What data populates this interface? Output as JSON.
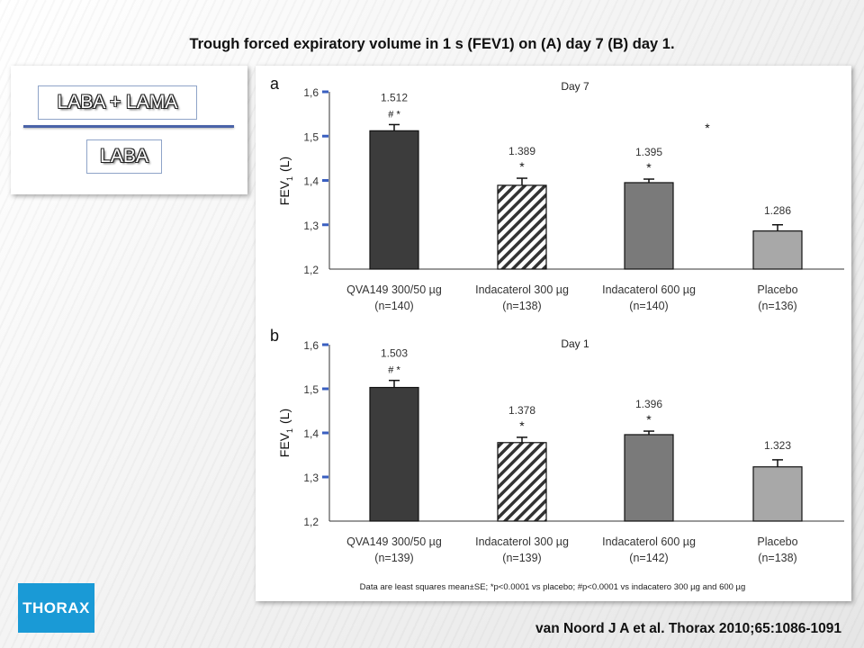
{
  "title": "Trough forced expiratory volume in 1 s (FEV1) on (A) day 7 (B) day 1.",
  "legend": {
    "items": [
      "LABA + LAMA",
      "LABA"
    ],
    "line_color": "#4a63a8"
  },
  "logo": "THORAX",
  "citation": "van Noord J A et al. Thorax 2010;65:1086-1091",
  "footnote": "Data are least squares mean±SE; *p<0.0001 vs placebo; #p<0.0001 vs indacatero 300 µg and 600 µg",
  "colors": {
    "dark": "#3c3c3c",
    "mid": "#7a7a7a",
    "light": "#a8a8a8",
    "hatch": "#333333",
    "tick": "#3a5fc0"
  },
  "chart_data": [
    {
      "panel": "a",
      "type": "bar",
      "title": "Day 7",
      "ylabel": "FEV",
      "ylabel_sub": "1",
      "ylabel_unit": "(L)",
      "ylim": [
        1.2,
        1.6
      ],
      "yticks": [
        "1,2",
        "1,3",
        "1,4",
        "1,5",
        "1,6"
      ],
      "categories": [
        [
          "QVA149 300/50 µg",
          "(n=140)"
        ],
        [
          "Indacaterol 300 µg",
          "(n=138)"
        ],
        [
          "Indacaterol 600 µg",
          "(n=140)"
        ],
        [
          "Placebo",
          "(n=136)"
        ]
      ],
      "values": [
        1.512,
        1.389,
        1.395,
        1.286
      ],
      "errors": [
        0.014,
        0.016,
        0.008,
        0.014
      ],
      "value_labels": [
        "1.512",
        "1.389",
        "1.395",
        "1.286"
      ],
      "significance": [
        "# *",
        "*",
        "*",
        ""
      ],
      "extra_marker": "*",
      "fills": [
        "dark",
        "hatch",
        "mid",
        "light"
      ]
    },
    {
      "panel": "b",
      "type": "bar",
      "title": "Day 1",
      "ylabel": "FEV",
      "ylabel_sub": "1",
      "ylabel_unit": "(L)",
      "ylim": [
        1.2,
        1.6
      ],
      "yticks": [
        "1,2",
        "1,3",
        "1,4",
        "1,5",
        "1,6"
      ],
      "categories": [
        [
          "QVA149 300/50 µg",
          "(n=139)"
        ],
        [
          "Indacaterol 300 µg",
          "(n=139)"
        ],
        [
          "Indacaterol 600 µg",
          "(n=142)"
        ],
        [
          "Placebo",
          "(n=138)"
        ]
      ],
      "values": [
        1.503,
        1.378,
        1.396,
        1.323
      ],
      "errors": [
        0.016,
        0.012,
        0.008,
        0.016
      ],
      "value_labels": [
        "1.503",
        "1.378",
        "1.396",
        "1.323"
      ],
      "significance": [
        "# *",
        "*",
        "*",
        ""
      ],
      "fills": [
        "dark",
        "hatch",
        "mid",
        "light"
      ]
    }
  ]
}
